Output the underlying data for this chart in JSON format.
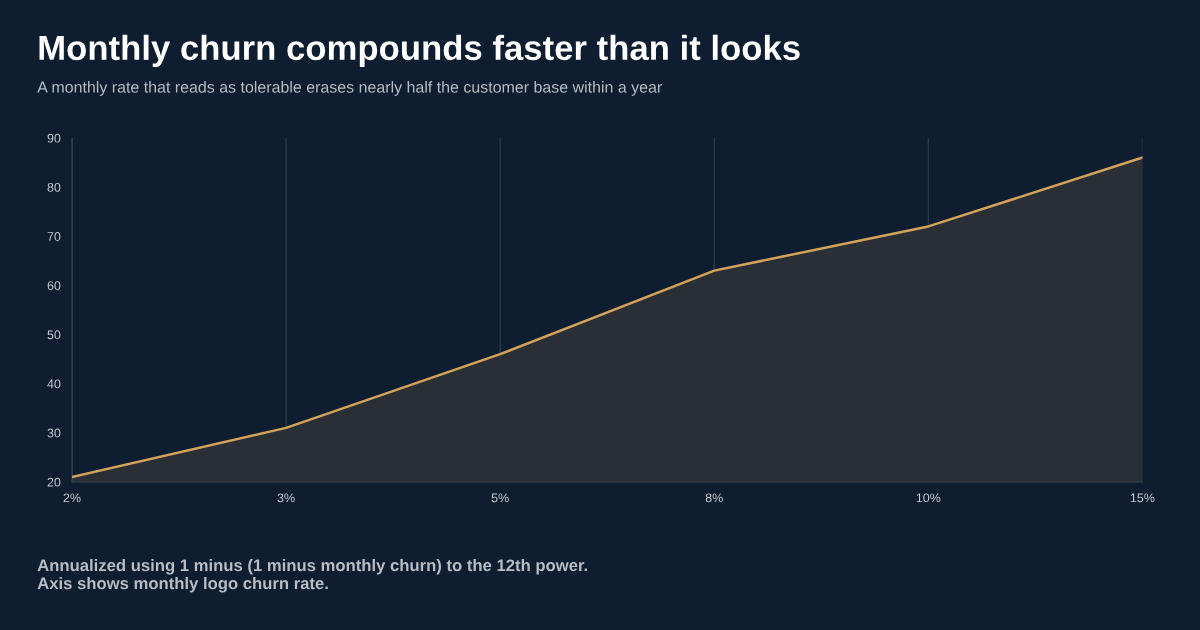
{
  "chart_data": {
    "type": "area",
    "title": "Monthly churn compounds faster than it looks",
    "subtitle": "A monthly rate that reads as tolerable erases nearly half the customer base within a year",
    "categories": [
      "2%",
      "3%",
      "5%",
      "8%",
      "10%",
      "15%"
    ],
    "series": [
      {
        "color": "#d4a35a",
        "values": [
          21,
          31,
          46,
          63,
          72,
          86
        ]
      }
    ],
    "ylim": [
      20,
      90
    ],
    "yticks": [
      20,
      30,
      40,
      50,
      60,
      70,
      80,
      90
    ],
    "grid": "x",
    "legend": false,
    "annotations": [
      "Annualized using 1 minus (1 minus monthly churn) to the 12th power. Axis shows monthly logo churn rate."
    ]
  }
}
